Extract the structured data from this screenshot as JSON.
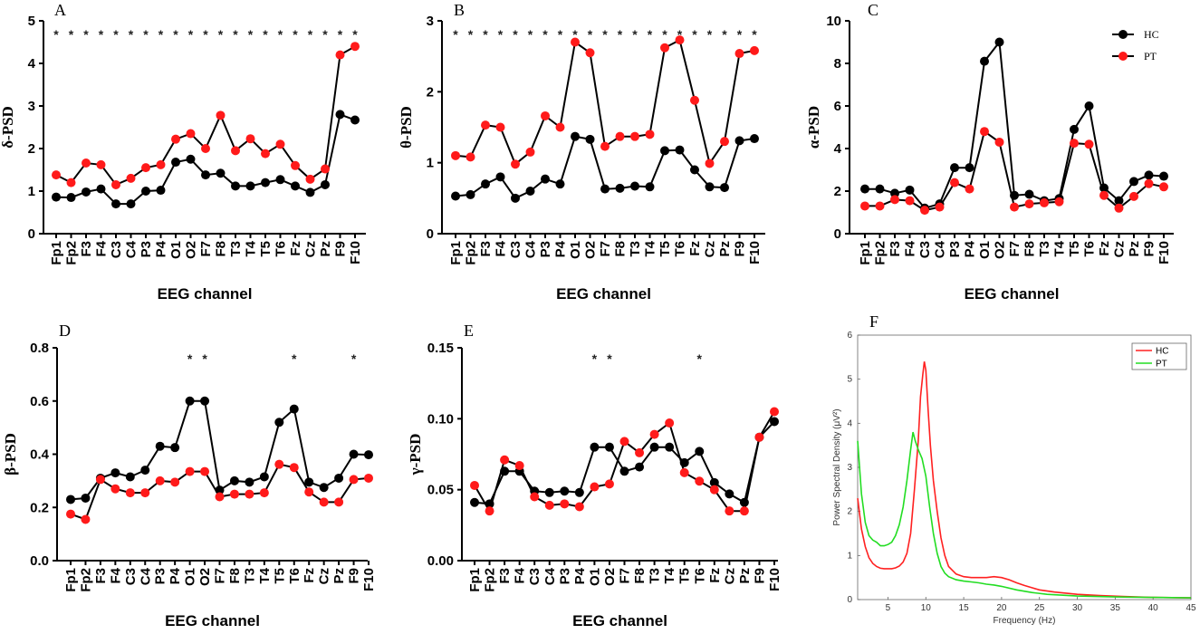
{
  "channels": [
    "Fp1",
    "Fp2",
    "F3",
    "F4",
    "C3",
    "C4",
    "P3",
    "P4",
    "O1",
    "O2",
    "F7",
    "F8",
    "T3",
    "T4",
    "T5",
    "T6",
    "Fz",
    "Cz",
    "Pz",
    "F9",
    "F10"
  ],
  "colors": {
    "HC": "#000000",
    "PT": "#ff1a1a",
    "F_HC": "#ff2020",
    "F_PT": "#22dd22"
  },
  "chart_data": [
    {
      "id": "A",
      "type": "line",
      "panel_label": "A",
      "ylabel": "δ-PSD",
      "xlabel": "EEG channel",
      "ylim": [
        0,
        5
      ],
      "yticks": [
        0,
        1,
        2,
        3,
        4,
        5
      ],
      "series": [
        {
          "name": "HC",
          "values": [
            0.86,
            0.85,
            0.98,
            1.05,
            0.7,
            0.7,
            1.0,
            1.02,
            1.68,
            1.75,
            1.38,
            1.42,
            1.12,
            1.12,
            1.2,
            1.27,
            1.12,
            0.97,
            1.15,
            2.8,
            2.67
          ]
        },
        {
          "name": "PT",
          "values": [
            1.38,
            1.2,
            1.66,
            1.62,
            1.15,
            1.3,
            1.55,
            1.62,
            2.22,
            2.35,
            2.0,
            2.78,
            1.95,
            2.23,
            1.88,
            2.1,
            1.6,
            1.28,
            1.52,
            4.2,
            4.4
          ]
        }
      ],
      "significant": [
        0,
        1,
        2,
        3,
        4,
        5,
        6,
        7,
        8,
        9,
        10,
        11,
        12,
        13,
        14,
        15,
        16,
        17,
        18,
        19,
        20
      ],
      "star_labels": [
        "*",
        "*",
        "*",
        "*",
        "*",
        "*",
        "*",
        "*",
        "*",
        "*",
        "*",
        "*",
        "*",
        "*",
        "*",
        "*",
        "*",
        "*",
        "*",
        "*",
        "*"
      ]
    },
    {
      "id": "B",
      "type": "line",
      "panel_label": "B",
      "ylabel": "θ-PSD",
      "xlabel": "EEG channel",
      "ylim": [
        0,
        3
      ],
      "yticks": [
        0,
        1,
        2,
        3
      ],
      "series": [
        {
          "name": "HC",
          "values": [
            0.53,
            0.55,
            0.7,
            0.8,
            0.5,
            0.6,
            0.77,
            0.7,
            1.37,
            1.33,
            0.63,
            0.64,
            0.67,
            0.66,
            1.17,
            1.18,
            0.9,
            0.66,
            0.65,
            1.31,
            1.34
          ]
        },
        {
          "name": "PT",
          "values": [
            1.1,
            1.08,
            1.53,
            1.5,
            0.98,
            1.15,
            1.66,
            1.5,
            2.7,
            2.55,
            1.23,
            1.37,
            1.37,
            1.4,
            2.62,
            2.73,
            1.88,
            0.99,
            1.3,
            2.54,
            2.58
          ]
        }
      ],
      "significant": [
        0,
        1,
        2,
        3,
        4,
        5,
        6,
        7,
        8,
        9,
        10,
        11,
        12,
        13,
        14,
        15,
        16,
        17,
        18,
        19,
        20
      ],
      "star_labels": [
        "*",
        "*",
        "*",
        "*",
        "*",
        "*",
        "*",
        "*",
        "*",
        "*",
        "*",
        "*",
        "*",
        "*",
        "*",
        "*",
        "*",
        "*",
        "*",
        "*",
        "*"
      ]
    },
    {
      "id": "C",
      "type": "line",
      "panel_label": "C",
      "ylabel": "α-PSD",
      "xlabel": "EEG channel",
      "ylim": [
        0,
        10
      ],
      "yticks": [
        0,
        2,
        4,
        6,
        8,
        10
      ],
      "legend": [
        "HC",
        "PT"
      ],
      "series": [
        {
          "name": "HC",
          "values": [
            2.1,
            2.1,
            1.9,
            2.05,
            1.2,
            1.4,
            3.1,
            3.1,
            8.1,
            9.0,
            1.8,
            1.85,
            1.55,
            1.65,
            4.9,
            6.0,
            2.15,
            1.55,
            2.45,
            2.75,
            2.7
          ]
        },
        {
          "name": "PT",
          "values": [
            1.3,
            1.3,
            1.6,
            1.55,
            1.1,
            1.25,
            2.4,
            2.1,
            4.8,
            4.3,
            1.25,
            1.4,
            1.45,
            1.5,
            4.25,
            4.2,
            1.8,
            1.2,
            1.75,
            2.35,
            2.2
          ]
        }
      ],
      "significant": [],
      "star_labels": []
    },
    {
      "id": "D",
      "type": "line",
      "panel_label": "D",
      "ylabel": "β-PSD",
      "xlabel": "EEG channel",
      "ylim": [
        0,
        0.8
      ],
      "yticks": [
        0.0,
        0.2,
        0.4,
        0.6,
        0.8
      ],
      "ytick_labels": [
        "0.0",
        "0.2",
        "0.4",
        "0.6",
        "0.8"
      ],
      "series": [
        {
          "name": "HC",
          "values": [
            0.23,
            0.235,
            0.31,
            0.33,
            0.315,
            0.34,
            0.43,
            0.425,
            0.6,
            0.6,
            0.265,
            0.3,
            0.295,
            0.315,
            0.52,
            0.57,
            0.295,
            0.275,
            0.31,
            0.4,
            0.398
          ]
        },
        {
          "name": "PT",
          "values": [
            0.175,
            0.155,
            0.305,
            0.27,
            0.255,
            0.255,
            0.3,
            0.295,
            0.335,
            0.335,
            0.24,
            0.25,
            0.25,
            0.255,
            0.362,
            0.35,
            0.258,
            0.22,
            0.22,
            0.305,
            0.31
          ]
        }
      ],
      "significant": [
        8,
        9,
        15,
        19
      ],
      "star_labels": [
        "*",
        "*",
        "*",
        "*"
      ]
    },
    {
      "id": "E",
      "type": "line",
      "panel_label": "E",
      "ylabel": "γ-PSD",
      "xlabel": "EEG channel",
      "ylim": [
        0,
        0.15
      ],
      "yticks": [
        0,
        0.05,
        0.1,
        0.15
      ],
      "ytick_labels": [
        "0.00",
        "0.05",
        "0.10",
        "0.15"
      ],
      "series": [
        {
          "name": "HC",
          "values": [
            0.041,
            0.04,
            0.063,
            0.063,
            0.049,
            0.048,
            0.049,
            0.048,
            0.08,
            0.08,
            0.063,
            0.066,
            0.08,
            0.08,
            0.069,
            0.077,
            0.055,
            0.047,
            0.041,
            0.087,
            0.098
          ]
        },
        {
          "name": "PT",
          "values": [
            0.053,
            0.035,
            0.071,
            0.067,
            0.045,
            0.039,
            0.04,
            0.038,
            0.052,
            0.054,
            0.084,
            0.076,
            0.089,
            0.097,
            0.062,
            0.056,
            0.05,
            0.035,
            0.035,
            0.087,
            0.105
          ]
        }
      ],
      "significant": [
        8,
        9,
        15
      ],
      "star_labels": [
        "*",
        "*",
        "*"
      ]
    },
    {
      "id": "F",
      "type": "line",
      "panel_label": "F",
      "ylabel": "Power Spectral Density (μV²)",
      "xlabel": "Frequency (Hz)",
      "xlim": [
        1,
        45
      ],
      "ylim": [
        0,
        6
      ],
      "xticks": [
        5,
        10,
        15,
        20,
        25,
        30,
        35,
        40,
        45
      ],
      "yticks": [
        0,
        1,
        2,
        3,
        4,
        5,
        6
      ],
      "legend": [
        "HC",
        "PT"
      ],
      "series": [
        {
          "name": "HC",
          "x": [
            1,
            1.5,
            2,
            2.5,
            3,
            3.5,
            4,
            4.5,
            5,
            5.5,
            6,
            6.5,
            7,
            7.5,
            8,
            8.5,
            9,
            9.3,
            9.6,
            9.8,
            10,
            10.3,
            10.6,
            11,
            11.5,
            12,
            12.5,
            13,
            14,
            15,
            16,
            17,
            18,
            19,
            20,
            21,
            22,
            23,
            24,
            25,
            27,
            30,
            33,
            36,
            40,
            45
          ],
          "y": [
            2.3,
            1.6,
            1.2,
            0.95,
            0.82,
            0.75,
            0.71,
            0.7,
            0.7,
            0.7,
            0.72,
            0.76,
            0.85,
            1.05,
            1.5,
            2.5,
            3.6,
            4.6,
            5.1,
            5.4,
            5.2,
            4.3,
            3.5,
            2.7,
            2.0,
            1.4,
            1.0,
            0.75,
            0.58,
            0.52,
            0.5,
            0.5,
            0.5,
            0.52,
            0.5,
            0.45,
            0.38,
            0.32,
            0.27,
            0.22,
            0.17,
            0.12,
            0.09,
            0.07,
            0.05,
            0.04
          ]
        },
        {
          "name": "PT",
          "x": [
            1,
            1.5,
            2,
            2.5,
            3,
            3.5,
            4,
            4.5,
            5,
            5.5,
            6,
            6.5,
            7,
            7.5,
            8,
            8.3,
            8.6,
            9,
            9.5,
            10,
            10.5,
            11,
            11.5,
            12,
            12.5,
            13,
            14,
            15,
            16,
            17,
            18,
            19,
            20,
            22,
            24,
            26,
            30,
            35,
            40,
            45
          ],
          "y": [
            3.6,
            2.4,
            1.75,
            1.45,
            1.35,
            1.3,
            1.22,
            1.22,
            1.25,
            1.3,
            1.45,
            1.7,
            2.1,
            2.7,
            3.4,
            3.8,
            3.6,
            3.4,
            3.2,
            2.8,
            2.1,
            1.5,
            1.05,
            0.75,
            0.6,
            0.52,
            0.45,
            0.42,
            0.4,
            0.38,
            0.35,
            0.33,
            0.3,
            0.22,
            0.16,
            0.12,
            0.08,
            0.06,
            0.05,
            0.04
          ]
        }
      ]
    }
  ]
}
